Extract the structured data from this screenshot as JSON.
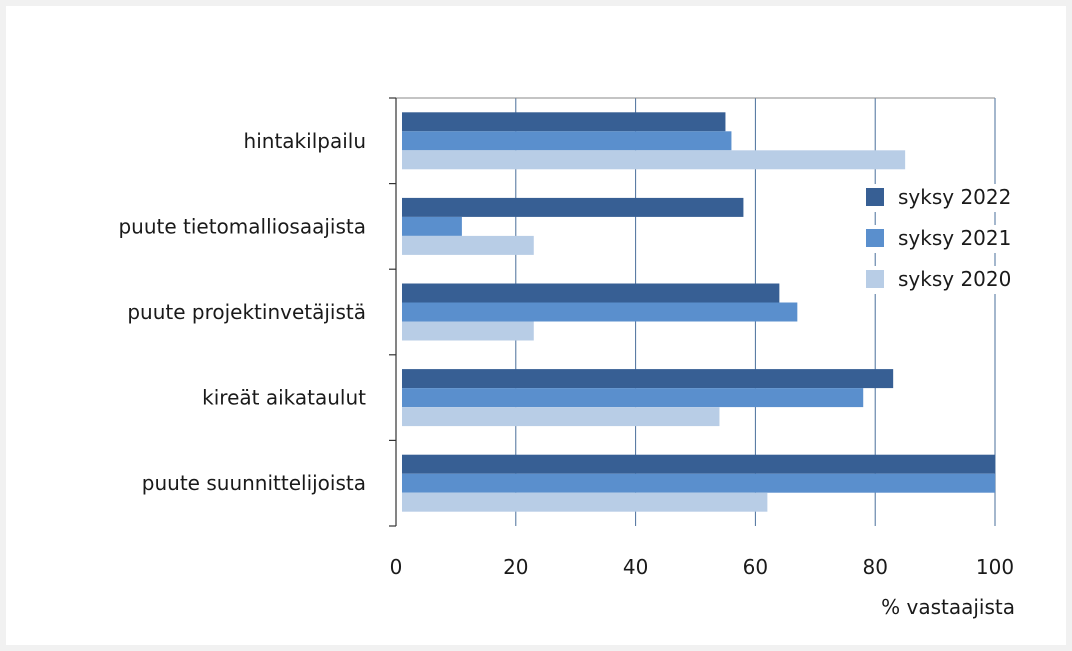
{
  "chart_data": {
    "type": "bar",
    "orientation": "horizontal",
    "categories": [
      "hintakilpailu",
      "puute tietomalliosaajista",
      "puute projektinvetäjistä",
      "kireät aikataulut",
      "puute suunnittelijoista"
    ],
    "series": [
      {
        "name": "syksy 2022",
        "color": "#375f94",
        "values": [
          55,
          58,
          64,
          83,
          100
        ]
      },
      {
        "name": "syksy 2021",
        "color": "#5a8fcd",
        "values": [
          56,
          11,
          67,
          78,
          100
        ]
      },
      {
        "name": "syksy 2020",
        "color": "#b8cde6",
        "values": [
          85,
          23,
          23,
          54,
          62
        ]
      }
    ],
    "xlim": [
      0,
      100
    ],
    "xticks": [
      "0",
      "20",
      "40",
      "60",
      "80",
      "100"
    ],
    "xlabel": "% vastaajista",
    "ylabel": "",
    "grid": "vertical",
    "legend_position": "right"
  }
}
